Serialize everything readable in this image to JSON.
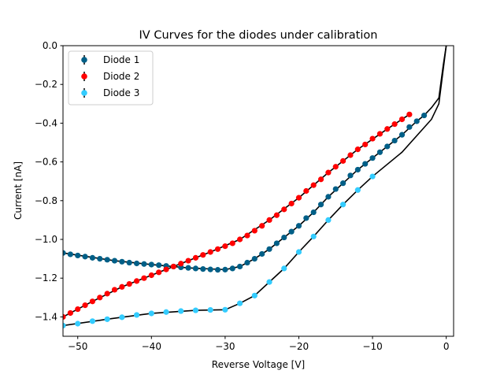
{
  "chart_data": {
    "type": "scatter",
    "title": "IV Curves for the diodes under calibration",
    "xlabel": "Reverse Voltage [V]",
    "ylabel": "Current [nA]",
    "xlim": [
      -52,
      1
    ],
    "ylim": [
      -1.5,
      0.0
    ],
    "xticks": [
      -50,
      -40,
      -30,
      -20,
      -10,
      0
    ],
    "yticks": [
      -1.4,
      -1.2,
      -1.0,
      -0.8,
      -0.6,
      -0.4,
      -0.2,
      0.0
    ],
    "xtick_labels": [
      "−50",
      "−40",
      "−30",
      "−20",
      "−10",
      "0"
    ],
    "ytick_labels": [
      "−1.4",
      "−1.2",
      "−1.0",
      "−0.8",
      "−0.6",
      "−0.4",
      "−0.2",
      "0.0"
    ],
    "grid": false,
    "legend_position": "top-left",
    "series": [
      {
        "name": "Diode 1",
        "color": "#005f87",
        "x": [
          -52,
          -51,
          -50,
          -49,
          -48,
          -47,
          -46,
          -45,
          -44,
          -43,
          -42,
          -41,
          -40,
          -39,
          -38,
          -37,
          -36,
          -35,
          -34,
          -33,
          -32,
          -31,
          -30,
          -29,
          -28,
          -27,
          -26,
          -25,
          -24,
          -23,
          -22,
          -21,
          -20,
          -19,
          -18,
          -17,
          -16,
          -15,
          -14,
          -13,
          -12,
          -11,
          -10,
          -9,
          -8,
          -7,
          -6,
          -5,
          -4,
          -3
        ],
        "y": [
          -1.07,
          -1.077,
          -1.083,
          -1.089,
          -1.095,
          -1.1,
          -1.105,
          -1.11,
          -1.115,
          -1.12,
          -1.124,
          -1.127,
          -1.13,
          -1.133,
          -1.137,
          -1.14,
          -1.144,
          -1.147,
          -1.15,
          -1.153,
          -1.155,
          -1.157,
          -1.156,
          -1.15,
          -1.14,
          -1.12,
          -1.1,
          -1.075,
          -1.05,
          -1.02,
          -0.99,
          -0.96,
          -0.93,
          -0.89,
          -0.86,
          -0.82,
          -0.78,
          -0.74,
          -0.71,
          -0.67,
          -0.64,
          -0.61,
          -0.58,
          -0.55,
          -0.52,
          -0.49,
          -0.46,
          -0.42,
          -0.39,
          -0.36
        ],
        "fit": [
          [
            -52,
            -1.07
          ],
          [
            -45,
            -1.11
          ],
          [
            -40,
            -1.13
          ],
          [
            -35,
            -1.147
          ],
          [
            -30,
            -1.156
          ],
          [
            -28,
            -1.14
          ],
          [
            -26,
            -1.1
          ],
          [
            -24,
            -1.05
          ],
          [
            -22,
            -0.99
          ],
          [
            -20,
            -0.93
          ],
          [
            -18,
            -0.86
          ],
          [
            -16,
            -0.78
          ],
          [
            -14,
            -0.71
          ],
          [
            -12,
            -0.64
          ],
          [
            -10,
            -0.58
          ],
          [
            -8,
            -0.52
          ],
          [
            -6,
            -0.46
          ],
          [
            -4,
            -0.39
          ],
          [
            -3,
            -0.36
          ],
          [
            -2,
            -0.32
          ],
          [
            -1,
            -0.27
          ],
          [
            -0.4,
            -0.1
          ],
          [
            0,
            0.0
          ]
        ]
      },
      {
        "name": "Diode 2",
        "color": "#ff0000",
        "x": [
          -52,
          -51,
          -50,
          -49,
          -48,
          -47,
          -46,
          -45,
          -44,
          -43,
          -42,
          -41,
          -40,
          -39,
          -38,
          -37,
          -36,
          -35,
          -34,
          -33,
          -32,
          -31,
          -30,
          -29,
          -28,
          -27,
          -26,
          -25,
          -24,
          -23,
          -22,
          -21,
          -20,
          -19,
          -18,
          -17,
          -16,
          -15,
          -14,
          -13,
          -12,
          -11,
          -10,
          -9,
          -8,
          -7,
          -6,
          -5
        ],
        "y": [
          -1.4,
          -1.38,
          -1.36,
          -1.34,
          -1.32,
          -1.3,
          -1.28,
          -1.26,
          -1.245,
          -1.23,
          -1.215,
          -1.2,
          -1.185,
          -1.17,
          -1.155,
          -1.14,
          -1.125,
          -1.11,
          -1.095,
          -1.08,
          -1.065,
          -1.05,
          -1.035,
          -1.02,
          -1.0,
          -0.98,
          -0.955,
          -0.93,
          -0.9,
          -0.875,
          -0.845,
          -0.815,
          -0.785,
          -0.75,
          -0.72,
          -0.69,
          -0.655,
          -0.625,
          -0.595,
          -0.565,
          -0.535,
          -0.51,
          -0.48,
          -0.455,
          -0.43,
          -0.405,
          -0.38,
          -0.355
        ],
        "fit": [
          [
            -52,
            -1.4
          ],
          [
            -48,
            -1.32
          ],
          [
            -44,
            -1.245
          ],
          [
            -40,
            -1.185
          ],
          [
            -36,
            -1.125
          ],
          [
            -32,
            -1.065
          ],
          [
            -28,
            -1.0
          ],
          [
            -24,
            -0.9
          ],
          [
            -20,
            -0.785
          ],
          [
            -16,
            -0.655
          ],
          [
            -12,
            -0.535
          ],
          [
            -8,
            -0.43
          ],
          [
            -5,
            -0.355
          ]
        ]
      },
      {
        "name": "Diode 3",
        "color": "#33ccff",
        "x": [
          -52,
          -50,
          -48,
          -46,
          -44,
          -42,
          -40,
          -38,
          -36,
          -34,
          -32,
          -30,
          -28,
          -26,
          -24,
          -22,
          -20,
          -18,
          -16,
          -14,
          -12,
          -10
        ],
        "y": [
          -1.445,
          -1.435,
          -1.422,
          -1.412,
          -1.402,
          -1.39,
          -1.382,
          -1.375,
          -1.37,
          -1.366,
          -1.364,
          -1.363,
          -1.33,
          -1.29,
          -1.22,
          -1.15,
          -1.065,
          -0.985,
          -0.9,
          -0.82,
          -0.745,
          -0.675
        ],
        "fit": [
          [
            -52,
            -1.445
          ],
          [
            -46,
            -1.412
          ],
          [
            -40,
            -1.382
          ],
          [
            -34,
            -1.366
          ],
          [
            -30,
            -1.363
          ],
          [
            -28,
            -1.33
          ],
          [
            -26,
            -1.29
          ],
          [
            -24,
            -1.22
          ],
          [
            -22,
            -1.15
          ],
          [
            -20,
            -1.065
          ],
          [
            -18,
            -0.985
          ],
          [
            -16,
            -0.9
          ],
          [
            -14,
            -0.82
          ],
          [
            -12,
            -0.745
          ],
          [
            -10,
            -0.675
          ],
          [
            -6,
            -0.55
          ],
          [
            -2,
            -0.38
          ],
          [
            -1,
            -0.3
          ],
          [
            -0.4,
            -0.12
          ],
          [
            0,
            0.0
          ]
        ]
      }
    ]
  }
}
